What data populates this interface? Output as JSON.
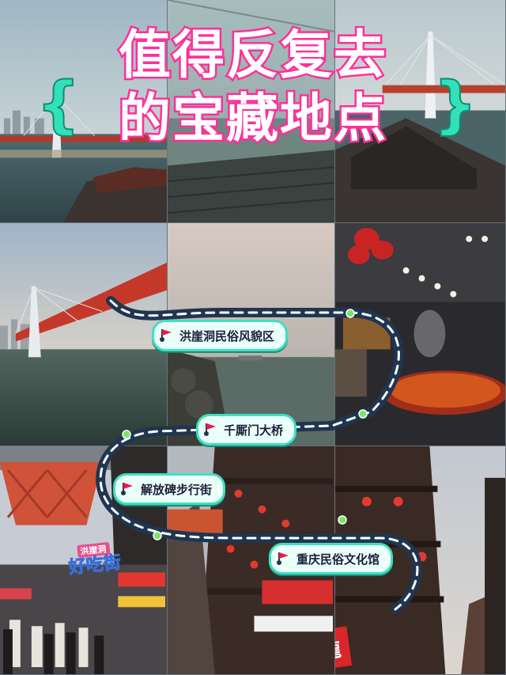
{
  "title": {
    "line1": "值得反复去",
    "line2": "的宝藏地点",
    "brace_left": "{",
    "brace_right": "}"
  },
  "colors": {
    "title_fill": "#ffffff",
    "title_stroke": "#ff2f9b",
    "route_line": "#1f3550",
    "route_dash": "#ffffff",
    "stop_border": "#3ee0c0",
    "flag": "#e8194f",
    "dot": "#7be36a"
  },
  "stops": [
    {
      "label": "洪崖洞民俗风貌区",
      "icon": "red-flag-pin-icon"
    },
    {
      "label": "千厮门大桥",
      "icon": "red-flag-pin-icon"
    },
    {
      "label": "解放碑步行街",
      "icon": "red-flag-pin-icon"
    },
    {
      "label": "重庆民俗文化馆",
      "icon": "red-flag-pin-icon"
    }
  ],
  "signs": {
    "food_street_top": "洪崖洞",
    "food_street_main": "好吃街",
    "shop_sign": "小龍"
  }
}
